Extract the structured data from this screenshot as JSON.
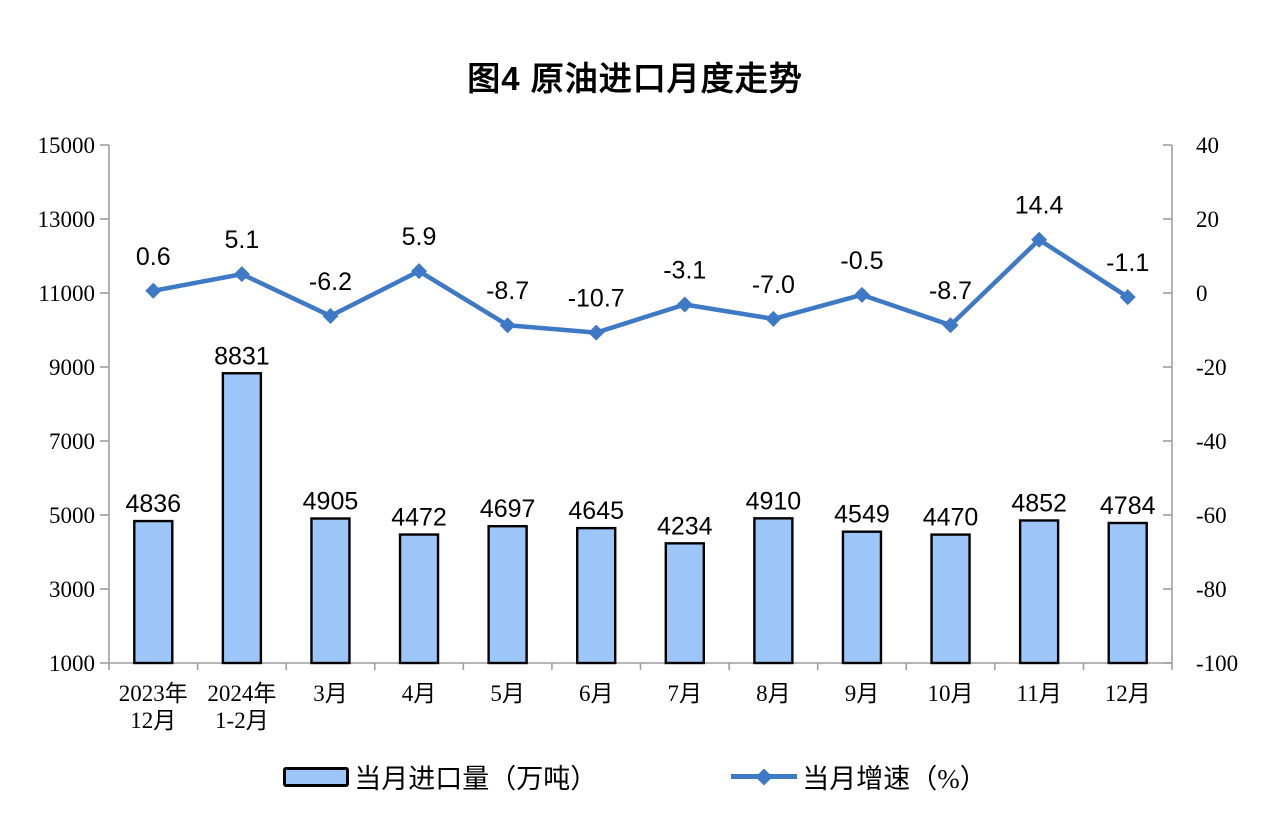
{
  "title": "图4 原油进口月度走势",
  "colors": {
    "bar_fill": "#9DC6F8",
    "bar_border": "#000000",
    "line": "#3E79C5",
    "axis": "#9E9E9E",
    "text": "#000000"
  },
  "legend": {
    "bar_label": "当月进口量（万吨）",
    "line_label": "当月增速（%）"
  },
  "chart_data": {
    "type": "combo_bar_line",
    "title": "图4 原油进口月度走势",
    "categories": [
      "2023年\n12月",
      "2024年\n1-2月",
      "3月",
      "4月",
      "5月",
      "6月",
      "7月",
      "8月",
      "9月",
      "10月",
      "11月",
      "12月"
    ],
    "series": [
      {
        "name": "当月进口量（万吨）",
        "type": "bar",
        "axis": "left",
        "values": [
          4836,
          8831,
          4905,
          4472,
          4697,
          4645,
          4234,
          4910,
          4549,
          4470,
          4852,
          4784
        ]
      },
      {
        "name": "当月增速（%）",
        "type": "line",
        "axis": "right",
        "values": [
          0.6,
          5.1,
          -6.2,
          5.9,
          -8.7,
          -10.7,
          -3.1,
          -7.0,
          -0.5,
          -8.7,
          14.4,
          -1.1
        ]
      }
    ],
    "left_axis": {
      "min": 1000,
      "max": 15000,
      "ticks": [
        1000,
        3000,
        5000,
        7000,
        9000,
        11000,
        13000,
        15000
      ]
    },
    "right_axis": {
      "min": -100,
      "max": 40,
      "ticks": [
        -100,
        -80,
        -60,
        -40,
        -20,
        0,
        20,
        40
      ]
    },
    "grid": false,
    "legend_position": "bottom"
  }
}
